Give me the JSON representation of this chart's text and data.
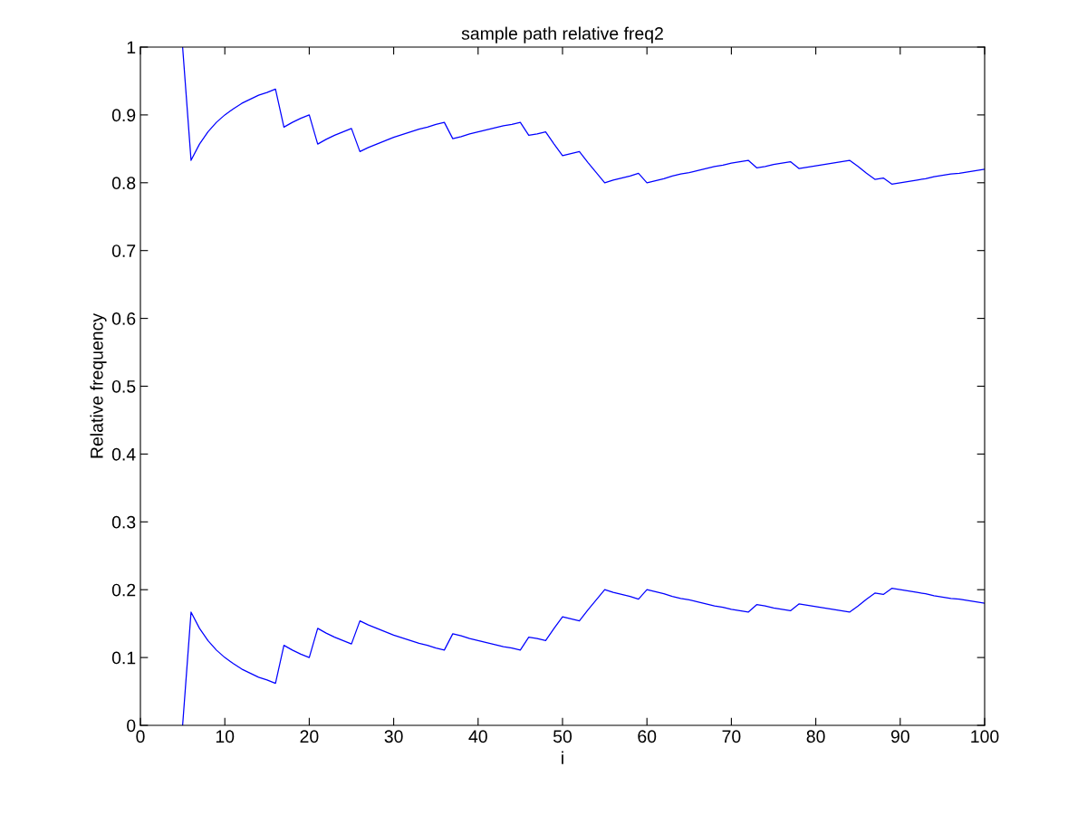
{
  "chart_data": {
    "type": "line",
    "title": "sample path relative freq2",
    "xlabel": "i",
    "ylabel": "Relative frequency",
    "x": [
      5,
      6,
      7,
      8,
      9,
      10,
      11,
      12,
      13,
      14,
      15,
      16,
      17,
      18,
      19,
      20,
      21,
      22,
      23,
      24,
      25,
      26,
      27,
      28,
      29,
      30,
      31,
      32,
      33,
      34,
      35,
      36,
      37,
      38,
      39,
      40,
      41,
      42,
      43,
      44,
      45,
      46,
      47,
      48,
      49,
      50,
      51,
      52,
      53,
      54,
      55,
      56,
      57,
      58,
      59,
      60,
      61,
      62,
      63,
      64,
      65,
      66,
      67,
      68,
      69,
      70,
      71,
      72,
      73,
      74,
      75,
      76,
      77,
      78,
      79,
      80,
      81,
      82,
      83,
      84,
      85,
      86,
      87,
      88,
      89,
      90,
      91,
      92,
      93,
      94,
      95,
      96,
      97,
      98,
      99,
      100
    ],
    "series": [
      {
        "color": "#0000ff",
        "values": [
          1.0,
          0.833,
          0.857,
          0.875,
          0.889,
          0.9,
          0.909,
          0.917,
          0.923,
          0.929,
          0.933,
          0.938,
          0.882,
          0.889,
          0.895,
          0.9,
          0.857,
          0.864,
          0.87,
          0.875,
          0.88,
          0.846,
          0.852,
          0.857,
          0.862,
          0.867,
          0.871,
          0.875,
          0.879,
          0.882,
          0.886,
          0.889,
          0.865,
          0.868,
          0.872,
          0.875,
          0.878,
          0.881,
          0.884,
          0.886,
          0.889,
          0.87,
          0.872,
          0.875,
          0.857,
          0.84,
          0.843,
          0.846,
          0.83,
          0.815,
          0.8,
          0.804,
          0.807,
          0.81,
          0.814,
          0.8,
          0.803,
          0.806,
          0.81,
          0.813,
          0.815,
          0.818,
          0.821,
          0.824,
          0.826,
          0.829,
          0.831,
          0.833,
          0.822,
          0.824,
          0.827,
          0.829,
          0.831,
          0.821,
          0.823,
          0.825,
          0.827,
          0.829,
          0.831,
          0.833,
          0.824,
          0.814,
          0.805,
          0.807,
          0.798,
          0.8,
          0.802,
          0.804,
          0.806,
          0.809,
          0.811,
          0.813,
          0.814,
          0.816,
          0.818,
          0.82
        ]
      },
      {
        "color": "#0000ff",
        "values": [
          0.0,
          0.167,
          0.143,
          0.125,
          0.111,
          0.1,
          0.091,
          0.083,
          0.077,
          0.071,
          0.067,
          0.062,
          0.118,
          0.111,
          0.105,
          0.1,
          0.143,
          0.136,
          0.13,
          0.125,
          0.12,
          0.154,
          0.148,
          0.143,
          0.138,
          0.133,
          0.129,
          0.125,
          0.121,
          0.118,
          0.114,
          0.111,
          0.135,
          0.132,
          0.128,
          0.125,
          0.122,
          0.119,
          0.116,
          0.114,
          0.111,
          0.13,
          0.128,
          0.125,
          0.143,
          0.16,
          0.157,
          0.154,
          0.17,
          0.185,
          0.2,
          0.196,
          0.193,
          0.19,
          0.186,
          0.2,
          0.197,
          0.194,
          0.19,
          0.187,
          0.185,
          0.182,
          0.179,
          0.176,
          0.174,
          0.171,
          0.169,
          0.167,
          0.178,
          0.176,
          0.173,
          0.171,
          0.169,
          0.179,
          0.177,
          0.175,
          0.173,
          0.171,
          0.169,
          0.167,
          0.176,
          0.186,
          0.195,
          0.193,
          0.202,
          0.2,
          0.198,
          0.196,
          0.194,
          0.191,
          0.189,
          0.187,
          0.186,
          0.184,
          0.182,
          0.18
        ]
      }
    ],
    "xlim": [
      0,
      100
    ],
    "xticks": [
      0,
      10,
      20,
      30,
      40,
      50,
      60,
      70,
      80,
      90,
      100
    ],
    "ylim": [
      0,
      1
    ],
    "yticks": [
      0,
      0.1,
      0.2,
      0.3,
      0.4,
      0.5,
      0.6,
      0.7,
      0.8,
      0.9,
      1
    ],
    "grid": false,
    "line_style": "solid",
    "marker": "none"
  }
}
